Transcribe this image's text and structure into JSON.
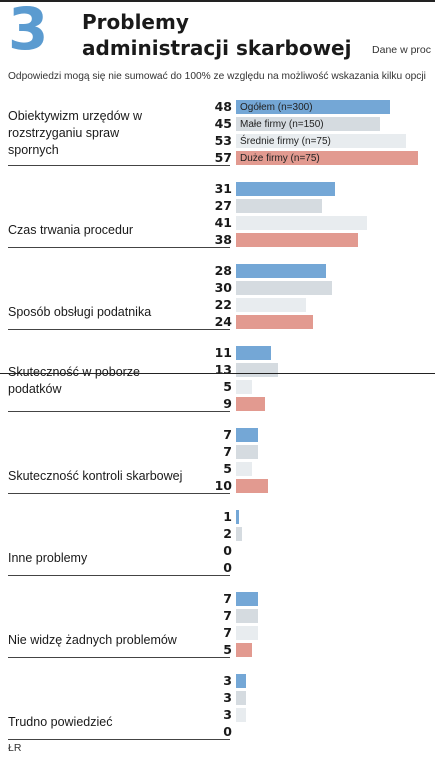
{
  "header": {
    "number": "3",
    "title_line1": "Problemy",
    "title_line2": "administracji skarbowej",
    "unit_note": "Dane w proc",
    "footnote": "Odpowiedzi mogą się nie sumować do 100% ze względu na możliwość wskazania kilku opcji"
  },
  "source": "ŁR",
  "colors": {
    "Ogółem (n=300)": "#74a7d6",
    "Małe firmy (n=150)": "#d5dbe0",
    "Średnie firmy (n=75)": "#e8ecef",
    "Duże firmy (n=75)": "#e29a90"
  },
  "chart_data": {
    "type": "bar",
    "orientation": "horizontal",
    "categories": [
      "Obiektywizm urzędów w rozstrzyganiu spraw spornych",
      "Czas trwania procedur",
      "Sposób obsługi podatnika",
      "Skuteczność w poborze podatków",
      "Skuteczność kontroli skarbowej",
      "Inne problemy",
      "Nie widzę żadnych problemów",
      "Trudno powiedzieć"
    ],
    "series": [
      {
        "name": "Ogółem (n=300)",
        "values": [
          48,
          31,
          28,
          11,
          7,
          1,
          7,
          3
        ]
      },
      {
        "name": "Małe firmy (n=150)",
        "values": [
          45,
          27,
          30,
          13,
          7,
          2,
          7,
          3
        ]
      },
      {
        "name": "Średnie firmy (n=75)",
        "values": [
          53,
          41,
          22,
          5,
          5,
          0,
          7,
          3
        ]
      },
      {
        "name": "Duże firmy (n=75)",
        "values": [
          57,
          38,
          24,
          9,
          10,
          0,
          5,
          0
        ]
      }
    ],
    "legend_placement": "inside bars of first group"
  }
}
